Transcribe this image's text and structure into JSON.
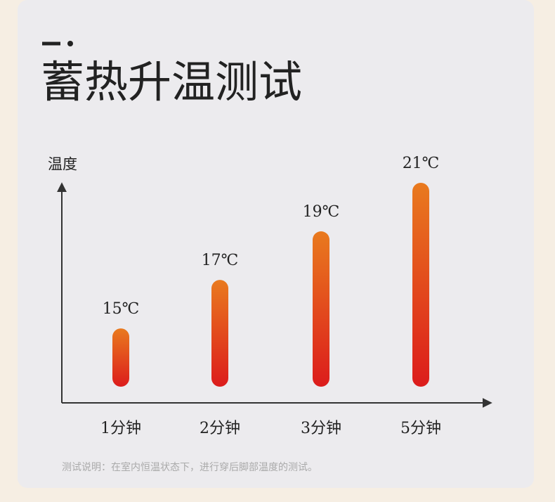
{
  "chart_data": {
    "type": "bar",
    "title": "蓄热升温测试",
    "y_label": "温度",
    "categories": [
      "1分钟",
      "2分钟",
      "3分钟",
      "5分钟"
    ],
    "values": [
      15,
      17,
      19,
      21
    ],
    "value_labels": [
      "15℃",
      "17℃",
      "19℃",
      "21℃"
    ],
    "gradient": [
      "#e97a1e",
      "#dc1c1c"
    ],
    "ylim": [
      12.6,
      21
    ],
    "note": "测试说明：在室内恒温状态下，进行穿后脚部温度的测试。"
  }
}
